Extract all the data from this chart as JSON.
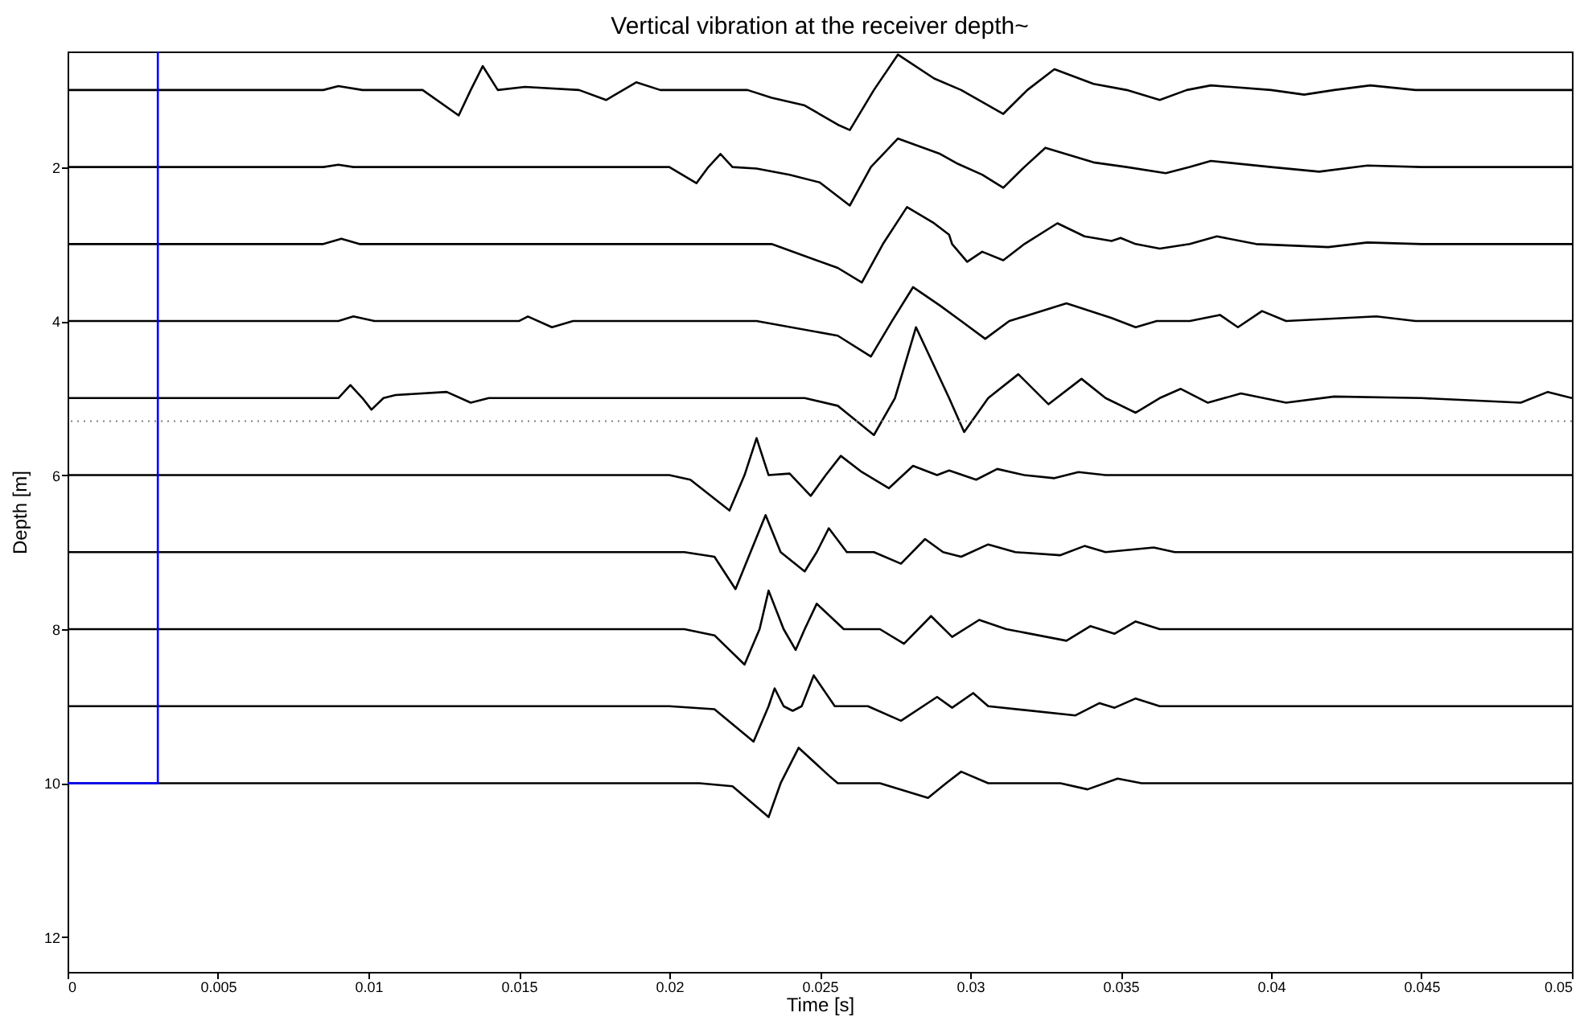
{
  "chart_data": {
    "type": "line",
    "title": "Vertical vibration at the receiver depth~",
    "xlabel": "Time [s]",
    "ylabel": "Depth [m]",
    "xlim": [
      0,
      0.05
    ],
    "xticks": [
      0,
      0.005,
      0.01,
      0.015,
      0.02,
      0.025,
      0.03,
      0.035,
      0.04,
      0.045,
      0.05
    ],
    "ylim": [
      12.45,
      0.5
    ],
    "yticks": [
      2,
      4,
      6,
      8,
      10,
      12
    ],
    "grid": false,
    "legend": false,
    "ref_lines": [
      {
        "axis": "y",
        "value": 5.3,
        "color": "#808080",
        "line_style": "dotted"
      }
    ],
    "series": [
      {
        "color": "#000000",
        "x": [
          0,
          0.0085,
          0.009,
          0.0098,
          0.0118,
          0.013,
          0.0134,
          0.0138,
          0.0143,
          0.0152,
          0.017,
          0.0179,
          0.0189,
          0.0197,
          0.0226,
          0.0234,
          0.0245,
          0.0256,
          0.026,
          0.0268,
          0.0276,
          0.0288,
          0.0297,
          0.0311,
          0.0319,
          0.0328,
          0.0341,
          0.0352,
          0.0363,
          0.0372,
          0.038,
          0.04,
          0.0411,
          0.0421,
          0.0433,
          0.0448,
          0.05
        ],
        "values": [
          1,
          1,
          0.95,
          1,
          1,
          1.33,
          1,
          0.69,
          1,
          0.96,
          1,
          1.13,
          0.9,
          1,
          1,
          1.1,
          1.2,
          1.45,
          1.52,
          1,
          0.54,
          0.85,
          1,
          1.31,
          1,
          0.73,
          0.92,
          1,
          1.13,
          1,
          0.94,
          1,
          1.06,
          1,
          0.94,
          1,
          1
        ]
      },
      {
        "color": "#000000",
        "x": [
          0,
          0.0085,
          0.009,
          0.0095,
          0.02,
          0.0209,
          0.0213,
          0.0217,
          0.0221,
          0.0229,
          0.024,
          0.025,
          0.026,
          0.0267,
          0.0276,
          0.029,
          0.0296,
          0.0304,
          0.0311,
          0.0318,
          0.0325,
          0.0341,
          0.0352,
          0.0365,
          0.0373,
          0.038,
          0.04,
          0.0416,
          0.0432,
          0.045,
          0.05
        ],
        "values": [
          2,
          2,
          1.97,
          2,
          2,
          2.21,
          2,
          1.83,
          2,
          2.02,
          2.1,
          2.2,
          2.5,
          2,
          1.63,
          1.83,
          1.96,
          2.1,
          2.27,
          2,
          1.75,
          1.94,
          2,
          2.08,
          2,
          1.92,
          2,
          2.06,
          1.98,
          2,
          2
        ]
      },
      {
        "color": "#000000",
        "x": [
          0,
          0.0085,
          0.0091,
          0.0097,
          0.0234,
          0.0256,
          0.0264,
          0.0271,
          0.0279,
          0.0288,
          0.0293,
          0.0294,
          0.0299,
          0.0304,
          0.0311,
          0.0318,
          0.0329,
          0.0338,
          0.0347,
          0.035,
          0.0355,
          0.0363,
          0.0373,
          0.0382,
          0.0395,
          0.0419,
          0.0432,
          0.045,
          0.05
        ],
        "values": [
          3,
          3,
          2.93,
          3,
          3,
          3.31,
          3.5,
          3,
          2.52,
          2.73,
          2.88,
          3,
          3.23,
          3.1,
          3.21,
          3,
          2.73,
          2.9,
          2.96,
          2.92,
          3,
          3.06,
          3,
          2.9,
          3,
          3.04,
          2.98,
          3,
          3
        ]
      },
      {
        "color": "#000000",
        "x": [
          0,
          0.009,
          0.0095,
          0.0102,
          0.015,
          0.0153,
          0.0161,
          0.0168,
          0.0229,
          0.0256,
          0.0267,
          0.0274,
          0.0281,
          0.029,
          0.0297,
          0.0305,
          0.0313,
          0.0332,
          0.0347,
          0.0355,
          0.0362,
          0.0373,
          0.0383,
          0.0389,
          0.0397,
          0.0405,
          0.0435,
          0.0448,
          0.05
        ],
        "values": [
          4,
          4,
          3.94,
          4,
          4,
          3.94,
          4.08,
          4,
          4,
          4.19,
          4.46,
          4,
          3.56,
          3.8,
          4,
          4.23,
          4,
          3.77,
          3.96,
          4.08,
          4,
          4,
          3.92,
          4.08,
          3.87,
          4,
          3.94,
          4,
          4
        ]
      },
      {
        "color": "#000000",
        "x": [
          0,
          0.009,
          0.0094,
          0.0098,
          0.0101,
          0.0105,
          0.0109,
          0.0126,
          0.0134,
          0.014,
          0.0245,
          0.0256,
          0.0268,
          0.0275,
          0.0282,
          0.0293,
          0.0298,
          0.0306,
          0.0316,
          0.0326,
          0.0337,
          0.0345,
          0.0355,
          0.0363,
          0.037,
          0.0379,
          0.039,
          0.0405,
          0.0421,
          0.045,
          0.0483,
          0.0492,
          0.05
        ],
        "values": [
          5,
          5,
          4.83,
          5,
          5.15,
          5,
          4.96,
          4.92,
          5.06,
          5,
          5,
          5.1,
          5.48,
          5,
          4.08,
          5,
          5.44,
          5,
          4.69,
          5.08,
          4.75,
          5,
          5.19,
          5,
          4.88,
          5.06,
          4.94,
          5.06,
          4.98,
          5,
          5.06,
          4.92,
          5
        ]
      },
      {
        "color": "#000000",
        "x": [
          0,
          0.02,
          0.0207,
          0.022,
          0.0225,
          0.0229,
          0.0233,
          0.024,
          0.0247,
          0.0252,
          0.0257,
          0.0264,
          0.0273,
          0.0281,
          0.0289,
          0.0293,
          0.0302,
          0.0309,
          0.0318,
          0.0328,
          0.0336,
          0.0345,
          0.05
        ],
        "values": [
          6,
          6,
          6.06,
          6.46,
          6,
          5.52,
          6,
          5.98,
          6.27,
          6,
          5.75,
          5.96,
          6.17,
          5.88,
          6,
          5.94,
          6.06,
          5.92,
          6,
          6.04,
          5.96,
          6,
          6
        ]
      },
      {
        "color": "#000000",
        "x": [
          0,
          0.0205,
          0.0215,
          0.0222,
          0.0227,
          0.0232,
          0.0237,
          0.0245,
          0.0249,
          0.0253,
          0.0259,
          0.0268,
          0.0277,
          0.0285,
          0.0291,
          0.0297,
          0.0306,
          0.0315,
          0.033,
          0.0338,
          0.0345,
          0.0361,
          0.0368,
          0.05
        ],
        "values": [
          7,
          7,
          7.06,
          7.48,
          7,
          6.52,
          7,
          7.25,
          7,
          6.69,
          7,
          7,
          7.15,
          6.83,
          7,
          7.06,
          6.9,
          7,
          7.04,
          6.92,
          7,
          6.94,
          7,
          7
        ]
      },
      {
        "color": "#000000",
        "x": [
          0,
          0.0205,
          0.0215,
          0.0225,
          0.023,
          0.0233,
          0.0238,
          0.0242,
          0.0245,
          0.0249,
          0.0258,
          0.027,
          0.0278,
          0.0287,
          0.0294,
          0.0303,
          0.0312,
          0.0332,
          0.034,
          0.0348,
          0.0355,
          0.0363,
          0.05
        ],
        "values": [
          8,
          8,
          8.08,
          8.46,
          8,
          7.5,
          8,
          8.27,
          8,
          7.67,
          8,
          8,
          8.19,
          7.83,
          8.1,
          7.88,
          8,
          8.15,
          7.96,
          8.06,
          7.9,
          8,
          8
        ]
      },
      {
        "color": "#000000",
        "x": [
          0,
          0.02,
          0.0215,
          0.0228,
          0.0233,
          0.0235,
          0.0238,
          0.0241,
          0.0244,
          0.0248,
          0.0255,
          0.0266,
          0.0277,
          0.0289,
          0.0294,
          0.0301,
          0.0306,
          0.0335,
          0.0343,
          0.0348,
          0.0355,
          0.0363,
          0.05
        ],
        "values": [
          9,
          9,
          9.04,
          9.46,
          9,
          8.77,
          9,
          9.06,
          9,
          8.6,
          9,
          9,
          9.19,
          8.88,
          9.02,
          8.83,
          9,
          9.12,
          8.96,
          9.02,
          8.9,
          9,
          9
        ]
      },
      {
        "color": "#000000",
        "x": [
          0,
          0.021,
          0.0221,
          0.0233,
          0.0237,
          0.0243,
          0.0253,
          0.0256,
          0.027,
          0.0286,
          0.0292,
          0.0297,
          0.0306,
          0.033,
          0.0339,
          0.0349,
          0.0357,
          0.05
        ],
        "values": [
          10,
          10,
          10.04,
          10.44,
          10,
          9.54,
          9.9,
          10,
          10,
          10.19,
          10,
          9.85,
          10,
          10,
          10.08,
          9.94,
          10,
          10
        ]
      },
      {
        "color": "#0000ff",
        "x": [
          0,
          0.003,
          0.003
        ],
        "values": [
          10,
          10,
          0.5
        ]
      }
    ]
  }
}
